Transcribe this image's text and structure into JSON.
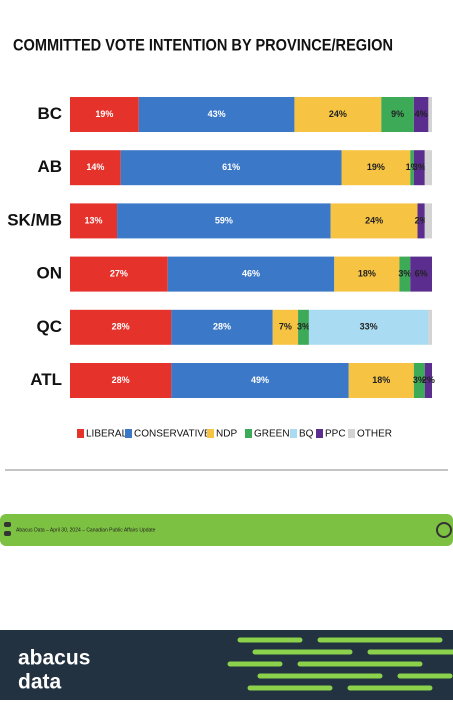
{
  "chart_data": {
    "type": "stacked-bar-horizontal",
    "title": "COMMITTED VOTE INTENTION BY PROVINCE/REGION",
    "categories": [
      "BC",
      "AB",
      "SK/MB",
      "ON",
      "QC",
      "ATL"
    ],
    "xlim": [
      0,
      100
    ],
    "series": [
      {
        "name": "LIBERAL",
        "color": "#e5322b",
        "values": [
          19,
          14,
          13,
          27,
          28,
          28
        ],
        "value_labels": [
          "19%",
          "14%",
          "13%",
          "27%",
          "28%",
          "28%"
        ]
      },
      {
        "name": "CONSERVATIVE",
        "color": "#3b79c8",
        "values": [
          43,
          61,
          59,
          46,
          28,
          49
        ],
        "value_labels": [
          "43%",
          "61%",
          "59%",
          "46%",
          "28%",
          "49%"
        ]
      },
      {
        "name": "NDP",
        "color": "#f6c343",
        "values": [
          24,
          19,
          24,
          18,
          7,
          18
        ],
        "value_labels": [
          "24%",
          "19%",
          "24%",
          "18%",
          "7%",
          "18%"
        ]
      },
      {
        "name": "GREEN",
        "color": "#3daa57",
        "values": [
          9,
          1,
          0,
          3,
          3,
          3
        ],
        "value_labels": [
          "9%",
          "1%",
          null,
          "3%",
          "3%",
          "3%"
        ]
      },
      {
        "name": "BQ",
        "color": "#a9dcf3",
        "values": [
          0,
          0,
          0,
          0,
          33,
          0
        ],
        "value_labels": [
          null,
          null,
          null,
          null,
          "33%",
          null
        ]
      },
      {
        "name": "PPC",
        "color": "#5b2d8e",
        "values": [
          4,
          3,
          2,
          6,
          0,
          2
        ],
        "value_labels": [
          "4%",
          "3%",
          "2%",
          "6%",
          null,
          "2%"
        ]
      },
      {
        "name": "OTHER",
        "color": "#d3d3d3",
        "values": [
          1,
          2,
          2,
          0,
          1,
          0
        ],
        "value_labels": [
          null,
          null,
          null,
          null,
          null,
          null
        ]
      }
    ]
  },
  "footer_note": "Abacus Data – April 30, 2024 – Canadian Public Affairs Update",
  "logo": {
    "line1": "abacus",
    "line2": "data"
  }
}
